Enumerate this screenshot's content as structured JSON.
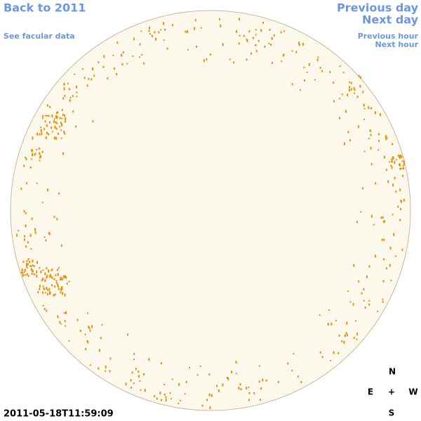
{
  "nav": {
    "back": "Back to 2011",
    "facular_data": "See facular data",
    "previous_day": "Previous day",
    "next_day": "Next day",
    "previous_hour": "Previous hour",
    "next_hour": "Next hour"
  },
  "timestamp": "2011-05-18T11:59:09",
  "compass": {
    "north": "N",
    "east": "E",
    "center": "+",
    "west": "W",
    "south": "S"
  }
}
